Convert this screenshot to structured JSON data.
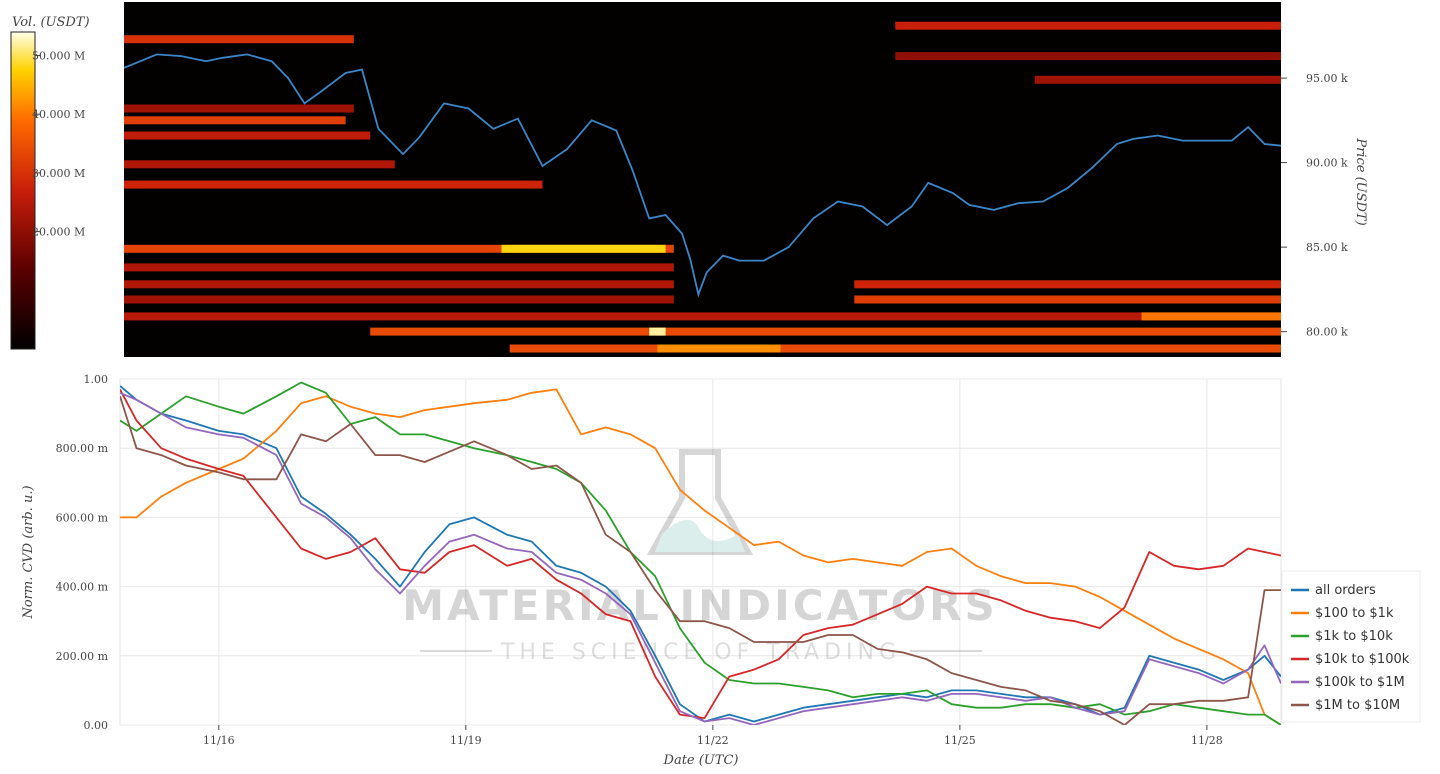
{
  "heatmap": {
    "colorbar_title": "Vol. (USDT)",
    "colorbar_ticks": [
      "50.000 M",
      "40.000 M",
      "30.000 M",
      "20.000 M"
    ],
    "colorbar_tick_values": [
      50,
      40,
      30,
      20
    ],
    "colorbar_range": [
      0,
      54
    ],
    "price_axis_title": "Price (USDT)",
    "price_ticks": [
      "95.00 k",
      "90.00 k",
      "85.00 k",
      "80.00 k"
    ],
    "price_tick_values": [
      95,
      90,
      85,
      80
    ],
    "price_range_k": [
      78.5,
      99.5
    ]
  },
  "cvd": {
    "y_axis_title": "Norm. CVD (arb. u.)",
    "y_ticks": [
      "1.00",
      "800.00 m",
      "600.00 m",
      "400.00 m",
      "200.00 m",
      "0.00"
    ],
    "y_tick_values": [
      1.0,
      0.8,
      0.6,
      0.4,
      0.2,
      0.0
    ],
    "x_axis_title": "Date (UTC)",
    "x_ticks": [
      "11/16",
      "11/19",
      "11/22",
      "11/25",
      "11/28"
    ],
    "x_tick_days": [
      16,
      19,
      22,
      25,
      28
    ]
  },
  "watermark": {
    "title": "MATERIAL INDICATORS",
    "subtitle": "THE SCIENCE OF TRADING"
  },
  "legend": [
    {
      "name": "all orders",
      "color": "#1f77b4"
    },
    {
      "name": "$100 to $1k",
      "color": "#ff7f0e"
    },
    {
      "name": "$1k to $10k",
      "color": "#2ca02c"
    },
    {
      "name": "$10k to $100k",
      "color": "#d62728"
    },
    {
      "name": "$100k to $1M",
      "color": "#9467bd"
    },
    {
      "name": "$1M to $10M",
      "color": "#8c564b"
    }
  ],
  "chart_data": [
    {
      "type": "heatmap",
      "title": "",
      "xlabel": "",
      "ylabel": "Price (USDT)",
      "colorbar_label": "Vol. (USDT)",
      "x_range_days": [
        14.8,
        28.9
      ],
      "y_range_k": [
        78.5,
        99.5
      ],
      "price_line_color": "#3a86c8",
      "price_series": {
        "x_days": [
          14.8,
          15.0,
          15.2,
          15.5,
          15.8,
          16.0,
          16.3,
          16.6,
          16.8,
          17.0,
          17.2,
          17.5,
          17.7,
          17.9,
          18.2,
          18.4,
          18.7,
          19.0,
          19.3,
          19.6,
          19.9,
          20.2,
          20.5,
          20.8,
          21.0,
          21.2,
          21.4,
          21.6,
          21.7,
          21.8,
          21.9,
          22.1,
          22.3,
          22.6,
          22.9,
          23.2,
          23.5,
          23.8,
          24.1,
          24.4,
          24.6,
          24.9,
          25.1,
          25.4,
          25.7,
          26.0,
          26.3,
          26.6,
          26.9,
          27.1,
          27.4,
          27.7,
          28.0,
          28.3,
          28.5,
          28.7,
          28.9
        ],
        "y_k": [
          95.6,
          96.0,
          96.4,
          96.3,
          96.0,
          96.2,
          96.4,
          96.0,
          95.0,
          93.5,
          94.2,
          95.3,
          95.5,
          92.0,
          90.5,
          91.5,
          93.5,
          93.2,
          92.0,
          92.6,
          89.8,
          90.8,
          92.5,
          91.9,
          89.5,
          86.7,
          86.9,
          85.8,
          84.3,
          82.2,
          83.5,
          84.5,
          84.2,
          84.2,
          85.0,
          86.7,
          87.7,
          87.4,
          86.3,
          87.4,
          88.8,
          88.2,
          87.5,
          87.2,
          87.6,
          87.7,
          88.5,
          89.7,
          91.1,
          91.4,
          91.6,
          91.3,
          91.3,
          91.3,
          92.1,
          91.1,
          91.0
        ]
      },
      "bands": [
        {
          "price_k": 97.3,
          "x_days": [
            14.8,
            17.6
          ],
          "level": 30
        },
        {
          "price_k": 98.1,
          "x_days": [
            24.2,
            28.9
          ],
          "level": 27
        },
        {
          "price_k": 96.3,
          "x_days": [
            24.2,
            28.9
          ],
          "level": 20
        },
        {
          "price_k": 94.9,
          "x_days": [
            25.9,
            28.9
          ],
          "level": 22
        },
        {
          "price_k": 93.2,
          "x_days": [
            14.8,
            17.6
          ],
          "level": 22
        },
        {
          "price_k": 92.5,
          "x_days": [
            14.8,
            17.5
          ],
          "level": 32
        },
        {
          "price_k": 91.6,
          "x_days": [
            14.8,
            17.8
          ],
          "level": 26
        },
        {
          "price_k": 89.9,
          "x_days": [
            14.8,
            18.1
          ],
          "level": 24
        },
        {
          "price_k": 88.7,
          "x_days": [
            14.8,
            19.9
          ],
          "level": 28
        },
        {
          "price_k": 84.9,
          "x_days": [
            14.8,
            21.5
          ],
          "level": 33
        },
        {
          "price_k": 84.9,
          "x_days": [
            19.4,
            21.4
          ],
          "level": 48
        },
        {
          "price_k": 83.8,
          "x_days": [
            14.8,
            21.5
          ],
          "level": 24
        },
        {
          "price_k": 82.8,
          "x_days": [
            14.8,
            21.5
          ],
          "level": 24
        },
        {
          "price_k": 82.8,
          "x_days": [
            23.7,
            28.9
          ],
          "level": 28
        },
        {
          "price_k": 81.9,
          "x_days": [
            14.8,
            21.5
          ],
          "level": 22
        },
        {
          "price_k": 81.9,
          "x_days": [
            23.7,
            28.9
          ],
          "level": 32
        },
        {
          "price_k": 80.9,
          "x_days": [
            14.8,
            28.9
          ],
          "level": 25
        },
        {
          "price_k": 80.9,
          "x_days": [
            27.2,
            28.9
          ],
          "level": 40
        },
        {
          "price_k": 80.0,
          "x_days": [
            17.8,
            28.9
          ],
          "level": 34
        },
        {
          "price_k": 80.0,
          "x_days": [
            21.2,
            21.4
          ],
          "level": 52
        },
        {
          "price_k": 79.0,
          "x_days": [
            19.5,
            28.9
          ],
          "level": 34
        },
        {
          "price_k": 79.0,
          "x_days": [
            21.3,
            22.8
          ],
          "level": 42
        }
      ]
    },
    {
      "type": "line",
      "title": "",
      "xlabel": "Date (UTC)",
      "ylabel": "Norm. CVD (arb. u.)",
      "ylim": [
        0,
        1
      ],
      "x_range_days": [
        14.8,
        28.9
      ],
      "grid": true,
      "legend_position": "right",
      "x": [
        14.8,
        15.0,
        15.3,
        15.6,
        16.0,
        16.3,
        16.7,
        17.0,
        17.3,
        17.6,
        17.9,
        18.2,
        18.5,
        18.8,
        19.1,
        19.5,
        19.8,
        20.1,
        20.4,
        20.7,
        21.0,
        21.3,
        21.6,
        21.9,
        22.2,
        22.5,
        22.8,
        23.1,
        23.4,
        23.7,
        24.0,
        24.3,
        24.6,
        24.9,
        25.2,
        25.5,
        25.8,
        26.1,
        26.4,
        26.7,
        27.0,
        27.3,
        27.6,
        27.9,
        28.2,
        28.5,
        28.7,
        28.9
      ],
      "series": [
        {
          "name": "all orders",
          "color": "#1f77b4",
          "values": [
            0.98,
            0.94,
            0.9,
            0.88,
            0.85,
            0.84,
            0.8,
            0.66,
            0.61,
            0.55,
            0.48,
            0.4,
            0.5,
            0.58,
            0.6,
            0.55,
            0.53,
            0.46,
            0.44,
            0.4,
            0.33,
            0.2,
            0.06,
            0.01,
            0.03,
            0.01,
            0.03,
            0.05,
            0.06,
            0.07,
            0.08,
            0.09,
            0.08,
            0.1,
            0.1,
            0.09,
            0.08,
            0.08,
            0.06,
            0.03,
            0.05,
            0.2,
            0.18,
            0.16,
            0.13,
            0.16,
            0.2,
            0.14
          ]
        },
        {
          "name": "$100 to $1k",
          "color": "#ff7f0e",
          "values": [
            0.6,
            0.6,
            0.66,
            0.7,
            0.74,
            0.77,
            0.85,
            0.93,
            0.95,
            0.92,
            0.9,
            0.89,
            0.91,
            0.92,
            0.93,
            0.94,
            0.96,
            0.97,
            0.84,
            0.86,
            0.84,
            0.8,
            0.68,
            0.62,
            0.57,
            0.52,
            0.53,
            0.49,
            0.47,
            0.48,
            0.47,
            0.46,
            0.5,
            0.51,
            0.46,
            0.43,
            0.41,
            0.41,
            0.4,
            0.37,
            0.33,
            0.29,
            0.25,
            0.22,
            0.19,
            0.15,
            0.03,
            0.0
          ]
        },
        {
          "name": "$1k to $10k",
          "color": "#2ca02c",
          "values": [
            0.88,
            0.85,
            0.9,
            0.95,
            0.92,
            0.9,
            0.95,
            0.99,
            0.96,
            0.87,
            0.89,
            0.84,
            0.84,
            0.82,
            0.8,
            0.78,
            0.76,
            0.74,
            0.7,
            0.62,
            0.5,
            0.43,
            0.28,
            0.18,
            0.13,
            0.12,
            0.12,
            0.11,
            0.1,
            0.08,
            0.09,
            0.09,
            0.1,
            0.06,
            0.05,
            0.05,
            0.06,
            0.06,
            0.05,
            0.06,
            0.03,
            0.04,
            0.06,
            0.05,
            0.04,
            0.03,
            0.03,
            0.0
          ]
        },
        {
          "name": "$10k to $100k",
          "color": "#d62728",
          "values": [
            0.97,
            0.88,
            0.8,
            0.77,
            0.74,
            0.72,
            0.6,
            0.51,
            0.48,
            0.5,
            0.54,
            0.45,
            0.44,
            0.5,
            0.52,
            0.46,
            0.48,
            0.42,
            0.38,
            0.32,
            0.3,
            0.14,
            0.03,
            0.02,
            0.14,
            0.16,
            0.19,
            0.26,
            0.28,
            0.29,
            0.32,
            0.35,
            0.4,
            0.38,
            0.38,
            0.36,
            0.33,
            0.31,
            0.3,
            0.28,
            0.34,
            0.5,
            0.46,
            0.45,
            0.46,
            0.51,
            0.5,
            0.49
          ]
        },
        {
          "name": "$100k to $1M",
          "color": "#9467bd",
          "values": [
            0.96,
            0.94,
            0.9,
            0.86,
            0.84,
            0.83,
            0.78,
            0.64,
            0.6,
            0.54,
            0.45,
            0.38,
            0.46,
            0.53,
            0.55,
            0.51,
            0.5,
            0.44,
            0.42,
            0.38,
            0.32,
            0.18,
            0.04,
            0.01,
            0.02,
            0.0,
            0.02,
            0.04,
            0.05,
            0.06,
            0.07,
            0.08,
            0.07,
            0.09,
            0.09,
            0.08,
            0.07,
            0.08,
            0.05,
            0.03,
            0.04,
            0.19,
            0.17,
            0.15,
            0.12,
            0.16,
            0.23,
            0.12
          ]
        },
        {
          "name": "$1M to $10M",
          "color": "#8c564b",
          "values": [
            0.95,
            0.8,
            0.78,
            0.75,
            0.73,
            0.71,
            0.71,
            0.84,
            0.82,
            0.87,
            0.78,
            0.78,
            0.76,
            0.79,
            0.82,
            0.78,
            0.74,
            0.75,
            0.7,
            0.55,
            0.5,
            0.39,
            0.3,
            0.3,
            0.28,
            0.24,
            0.24,
            0.24,
            0.26,
            0.26,
            0.22,
            0.21,
            0.19,
            0.15,
            0.13,
            0.11,
            0.1,
            0.07,
            0.06,
            0.04,
            0.0,
            0.06,
            0.06,
            0.07,
            0.07,
            0.08,
            0.39,
            0.39
          ]
        }
      ]
    }
  ]
}
